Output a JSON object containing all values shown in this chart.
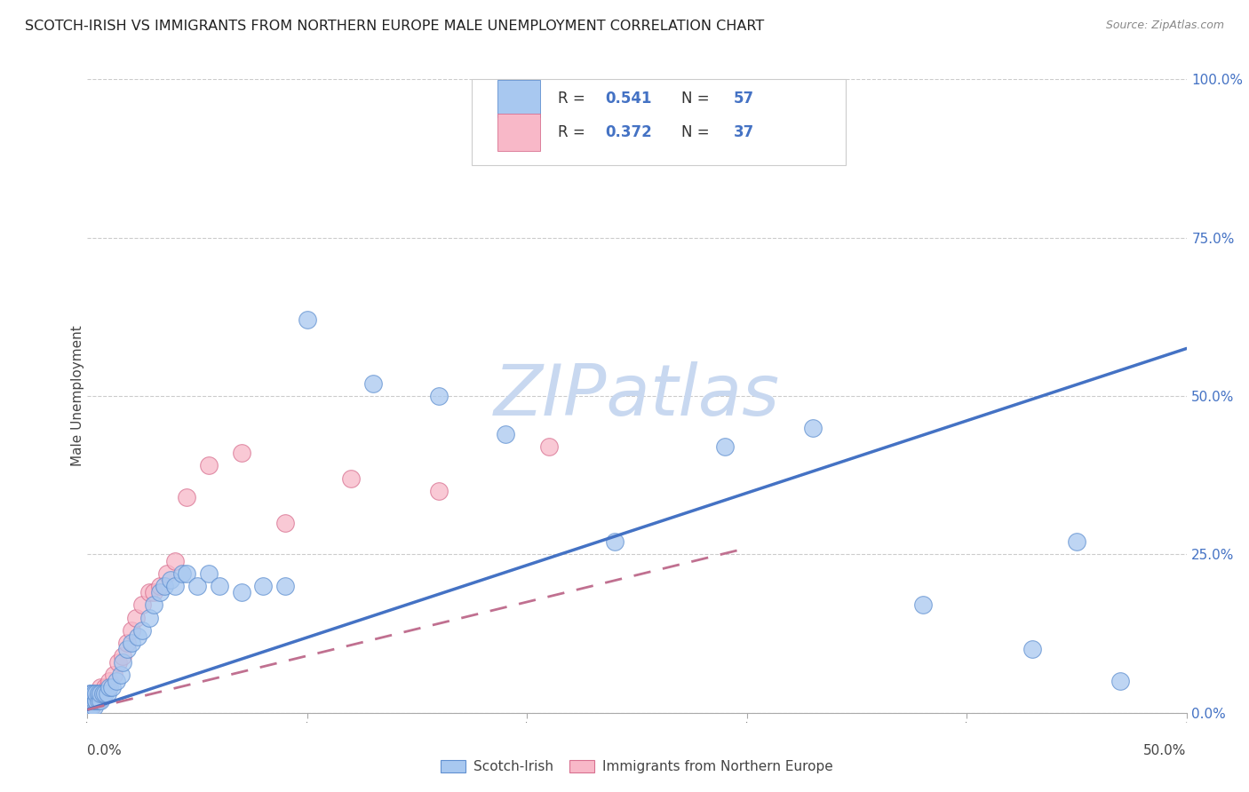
{
  "title": "SCOTCH-IRISH VS IMMIGRANTS FROM NORTHERN EUROPE MALE UNEMPLOYMENT CORRELATION CHART",
  "source": "Source: ZipAtlas.com",
  "ylabel": "Male Unemployment",
  "xmin": 0.0,
  "xmax": 0.5,
  "ymin": 0.0,
  "ymax": 1.0,
  "R_blue": 0.541,
  "N_blue": 57,
  "R_pink": 0.372,
  "N_pink": 37,
  "blue_color": "#A8C8F0",
  "pink_color": "#F8B8C8",
  "blue_edge_color": "#6090D0",
  "pink_edge_color": "#D87090",
  "blue_line_color": "#4472C4",
  "pink_line_color": "#C07090",
  "watermark": "ZIPatlas",
  "watermark_color": "#C8D8F0",
  "ytick_vals": [
    0.0,
    0.25,
    0.5,
    0.75,
    1.0
  ],
  "ytick_labels": [
    "0.0%",
    "25.0%",
    "50.0%",
    "75.0%",
    "100.0%"
  ],
  "blue_scatter_x": [
    0.001,
    0.001,
    0.001,
    0.001,
    0.001,
    0.002,
    0.002,
    0.002,
    0.002,
    0.002,
    0.003,
    0.003,
    0.003,
    0.004,
    0.004,
    0.004,
    0.005,
    0.005,
    0.006,
    0.006,
    0.007,
    0.008,
    0.009,
    0.01,
    0.011,
    0.013,
    0.015,
    0.016,
    0.018,
    0.02,
    0.023,
    0.025,
    0.028,
    0.03,
    0.033,
    0.035,
    0.038,
    0.04,
    0.043,
    0.045,
    0.05,
    0.055,
    0.06,
    0.07,
    0.08,
    0.09,
    0.1,
    0.13,
    0.16,
    0.19,
    0.24,
    0.29,
    0.33,
    0.38,
    0.43,
    0.45,
    0.47
  ],
  "blue_scatter_y": [
    0.01,
    0.01,
    0.02,
    0.02,
    0.03,
    0.01,
    0.02,
    0.02,
    0.03,
    0.03,
    0.01,
    0.02,
    0.03,
    0.02,
    0.02,
    0.03,
    0.02,
    0.03,
    0.02,
    0.03,
    0.03,
    0.03,
    0.03,
    0.04,
    0.04,
    0.05,
    0.06,
    0.08,
    0.1,
    0.11,
    0.12,
    0.13,
    0.15,
    0.17,
    0.19,
    0.2,
    0.21,
    0.2,
    0.22,
    0.22,
    0.2,
    0.22,
    0.2,
    0.19,
    0.2,
    0.2,
    0.62,
    0.52,
    0.5,
    0.44,
    0.27,
    0.42,
    0.45,
    0.17,
    0.1,
    0.27,
    0.05
  ],
  "pink_scatter_x": [
    0.001,
    0.001,
    0.001,
    0.002,
    0.002,
    0.002,
    0.003,
    0.003,
    0.004,
    0.004,
    0.005,
    0.005,
    0.006,
    0.006,
    0.007,
    0.008,
    0.009,
    0.01,
    0.012,
    0.014,
    0.016,
    0.018,
    0.02,
    0.022,
    0.025,
    0.028,
    0.03,
    0.033,
    0.036,
    0.04,
    0.045,
    0.055,
    0.07,
    0.09,
    0.12,
    0.16,
    0.21
  ],
  "pink_scatter_y": [
    0.01,
    0.02,
    0.02,
    0.01,
    0.02,
    0.03,
    0.02,
    0.03,
    0.02,
    0.03,
    0.02,
    0.03,
    0.03,
    0.04,
    0.03,
    0.04,
    0.04,
    0.05,
    0.06,
    0.08,
    0.09,
    0.11,
    0.13,
    0.15,
    0.17,
    0.19,
    0.19,
    0.2,
    0.22,
    0.24,
    0.34,
    0.39,
    0.41,
    0.3,
    0.37,
    0.35,
    0.42
  ],
  "blue_line_x0": 0.0,
  "blue_line_x1": 0.5,
  "blue_line_y0": 0.005,
  "blue_line_y1": 0.575,
  "pink_line_x0": 0.0,
  "pink_line_x1": 0.3,
  "pink_line_y0": 0.005,
  "pink_line_y1": 0.26
}
